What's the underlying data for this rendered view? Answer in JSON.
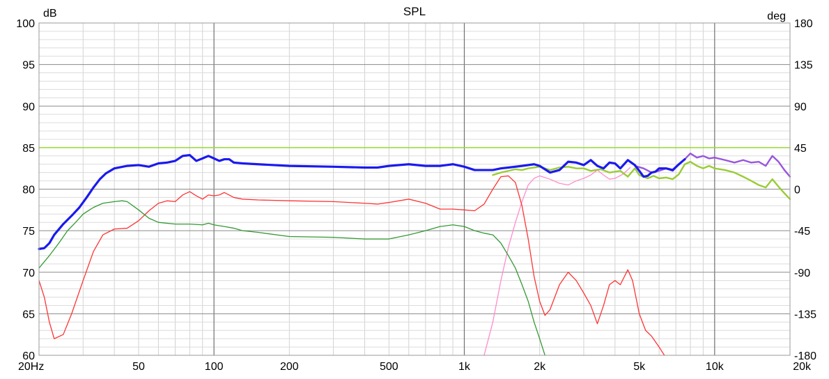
{
  "chart_data": {
    "type": "line",
    "title": "SPL",
    "ylabel_left": "dB",
    "ylabel_right": "deg",
    "x_scale": "log",
    "xlim": [
      20,
      20000
    ],
    "ylim": [
      60,
      100
    ],
    "ylim_right": [
      -180,
      180
    ],
    "x_tick_labels": [
      {
        "value": 20,
        "label": "20Hz"
      },
      {
        "value": 50,
        "label": "50"
      },
      {
        "value": 100,
        "label": "100"
      },
      {
        "value": 200,
        "label": "200"
      },
      {
        "value": 500,
        "label": "500"
      },
      {
        "value": 1000,
        "label": "1k"
      },
      {
        "value": 2000,
        "label": "2k"
      },
      {
        "value": 5000,
        "label": "5k"
      },
      {
        "value": 10000,
        "label": "10k"
      },
      {
        "value": 20000,
        "label": "20k"
      }
    ],
    "y_tick_labels": [
      "60",
      "65",
      "70",
      "75",
      "80",
      "85",
      "90",
      "95",
      "100"
    ],
    "y_right_tick_labels": [
      "-180",
      "-135",
      "-90",
      "-45",
      "0",
      "45",
      "90",
      "135",
      "180"
    ],
    "grid": true,
    "series": [
      {
        "color": "#99dd33",
        "width": 1.5,
        "points": [
          [
            20,
            85
          ],
          [
            20000,
            85
          ]
        ]
      },
      {
        "color": "#ff8ccc",
        "width": 1.3,
        "points": [
          [
            1200,
            60
          ],
          [
            1300,
            64
          ],
          [
            1400,
            69
          ],
          [
            1500,
            73
          ],
          [
            1600,
            76
          ],
          [
            1700,
            78.5
          ],
          [
            1800,
            80.5
          ],
          [
            1900,
            81.3
          ],
          [
            2000,
            81.6
          ],
          [
            2200,
            81.2
          ],
          [
            2400,
            80.7
          ],
          [
            2600,
            80.5
          ],
          [
            2800,
            81
          ],
          [
            3000,
            81.3
          ],
          [
            3200,
            81.7
          ],
          [
            3400,
            82.3
          ],
          [
            3600,
            81.7
          ],
          [
            3800,
            81.2
          ],
          [
            4000,
            81.3
          ],
          [
            4300,
            81.8
          ],
          [
            4600,
            82.6
          ]
        ]
      },
      {
        "color": "#ff3333",
        "width": 1.3,
        "points": [
          [
            20,
            69
          ],
          [
            21,
            67
          ],
          [
            22,
            64
          ],
          [
            23,
            62
          ],
          [
            25,
            62.5
          ],
          [
            27,
            65
          ],
          [
            30,
            69
          ],
          [
            33,
            72.5
          ],
          [
            36,
            74.5
          ],
          [
            40,
            75.2
          ],
          [
            45,
            75.3
          ],
          [
            50,
            76.2
          ],
          [
            55,
            77.4
          ],
          [
            60,
            78.3
          ],
          [
            65,
            78.6
          ],
          [
            70,
            78.5
          ],
          [
            75,
            79.3
          ],
          [
            80,
            79.7
          ],
          [
            85,
            79.2
          ],
          [
            90,
            78.8
          ],
          [
            95,
            79.3
          ],
          [
            100,
            79.2
          ],
          [
            105,
            79.3
          ],
          [
            110,
            79.6
          ],
          [
            120,
            79
          ],
          [
            130,
            78.8
          ],
          [
            150,
            78.7
          ],
          [
            200,
            78.6
          ],
          [
            300,
            78.5
          ],
          [
            400,
            78.3
          ],
          [
            450,
            78.2
          ],
          [
            500,
            78.4
          ],
          [
            600,
            78.8
          ],
          [
            700,
            78.3
          ],
          [
            800,
            77.6
          ],
          [
            900,
            77.6
          ],
          [
            1000,
            77.5
          ],
          [
            1100,
            77.4
          ],
          [
            1200,
            78.2
          ],
          [
            1300,
            80
          ],
          [
            1400,
            81.5
          ],
          [
            1500,
            81.6
          ],
          [
            1600,
            80.8
          ],
          [
            1700,
            78
          ],
          [
            1800,
            74
          ],
          [
            1900,
            69.5
          ],
          [
            2000,
            66.5
          ],
          [
            2100,
            64.8
          ],
          [
            2200,
            65.5
          ],
          [
            2400,
            68.5
          ],
          [
            2600,
            70
          ],
          [
            2800,
            69
          ],
          [
            3000,
            67.5
          ],
          [
            3200,
            66
          ],
          [
            3400,
            63.8
          ],
          [
            3600,
            66
          ],
          [
            3800,
            68.5
          ],
          [
            4000,
            69
          ],
          [
            4200,
            68.5
          ],
          [
            4500,
            70.3
          ],
          [
            4700,
            69
          ],
          [
            5000,
            65
          ],
          [
            5300,
            63
          ],
          [
            5600,
            62.3
          ],
          [
            6000,
            61
          ],
          [
            6300,
            60
          ]
        ]
      },
      {
        "color": "#339933",
        "width": 1.3,
        "points": [
          [
            20,
            70.5
          ],
          [
            22,
            72
          ],
          [
            24,
            73.5
          ],
          [
            26,
            75
          ],
          [
            28,
            76
          ],
          [
            30,
            77
          ],
          [
            33,
            77.8
          ],
          [
            36,
            78.3
          ],
          [
            40,
            78.5
          ],
          [
            43,
            78.6
          ],
          [
            45,
            78.5
          ],
          [
            50,
            77.5
          ],
          [
            55,
            76.5
          ],
          [
            60,
            76
          ],
          [
            70,
            75.8
          ],
          [
            80,
            75.8
          ],
          [
            90,
            75.7
          ],
          [
            95,
            75.9
          ],
          [
            100,
            75.7
          ],
          [
            110,
            75.5
          ],
          [
            120,
            75.3
          ],
          [
            130,
            75
          ],
          [
            150,
            74.8
          ],
          [
            200,
            74.3
          ],
          [
            300,
            74.2
          ],
          [
            400,
            74
          ],
          [
            500,
            74
          ],
          [
            600,
            74.5
          ],
          [
            700,
            75
          ],
          [
            800,
            75.5
          ],
          [
            900,
            75.7
          ],
          [
            1000,
            75.5
          ],
          [
            1100,
            75
          ],
          [
            1200,
            74.7
          ],
          [
            1300,
            74.5
          ],
          [
            1400,
            73.5
          ],
          [
            1500,
            72
          ],
          [
            1600,
            70.5
          ],
          [
            1700,
            68.5
          ],
          [
            1800,
            66.5
          ],
          [
            1900,
            64
          ],
          [
            2000,
            62
          ],
          [
            2100,
            60
          ]
        ]
      },
      {
        "color": "#99cc33",
        "width": 2.4,
        "points": [
          [
            1300,
            81.7
          ],
          [
            1400,
            82
          ],
          [
            1500,
            82.2
          ],
          [
            1600,
            82.4
          ],
          [
            1700,
            82.3
          ],
          [
            1800,
            82.5
          ],
          [
            2000,
            82.7
          ],
          [
            2200,
            82.3
          ],
          [
            2400,
            82.6
          ],
          [
            2600,
            82.7
          ],
          [
            2800,
            82.5
          ],
          [
            3000,
            82.5
          ],
          [
            3200,
            82.2
          ],
          [
            3500,
            82.4
          ],
          [
            3800,
            82
          ],
          [
            4200,
            82.2
          ],
          [
            4500,
            81.5
          ],
          [
            4800,
            82.5
          ],
          [
            5000,
            81.7
          ],
          [
            5400,
            81.3
          ],
          [
            5700,
            81.6
          ],
          [
            6000,
            81.3
          ],
          [
            6400,
            81.4
          ],
          [
            6800,
            81.2
          ],
          [
            7200,
            81.8
          ],
          [
            7600,
            83
          ],
          [
            8000,
            83.3
          ],
          [
            8500,
            82.8
          ],
          [
            9000,
            82.5
          ],
          [
            9500,
            82.8
          ],
          [
            10000,
            82.5
          ],
          [
            11000,
            82.3
          ],
          [
            12000,
            82
          ],
          [
            13000,
            81.5
          ],
          [
            14000,
            81
          ],
          [
            15000,
            80.5
          ],
          [
            16000,
            80.2
          ],
          [
            17000,
            81.2
          ],
          [
            18000,
            80.3
          ],
          [
            19000,
            79.5
          ],
          [
            20000,
            78.8
          ]
        ]
      },
      {
        "color": "#9955dd",
        "width": 2.4,
        "points": [
          [
            4800,
            82.8
          ],
          [
            5200,
            82.5
          ],
          [
            5600,
            82
          ],
          [
            6000,
            82.2
          ],
          [
            6400,
            82.5
          ],
          [
            6800,
            82.2
          ],
          [
            7200,
            83
          ],
          [
            7600,
            83.6
          ],
          [
            8000,
            84.3
          ],
          [
            8500,
            83.8
          ],
          [
            9000,
            84
          ],
          [
            9500,
            83.7
          ],
          [
            10000,
            83.8
          ],
          [
            11000,
            83.5
          ],
          [
            12000,
            83.2
          ],
          [
            13000,
            83.5
          ],
          [
            14000,
            83.2
          ],
          [
            15000,
            83.3
          ],
          [
            16000,
            82.8
          ],
          [
            17000,
            84
          ],
          [
            18000,
            83.3
          ],
          [
            19000,
            82.3
          ],
          [
            20000,
            81.5
          ]
        ]
      },
      {
        "color": "#1a1aee",
        "width": 3.2,
        "points": [
          [
            20,
            72.8
          ],
          [
            21,
            72.9
          ],
          [
            22,
            73.5
          ],
          [
            23,
            74.5
          ],
          [
            25,
            75.8
          ],
          [
            27,
            76.8
          ],
          [
            29,
            77.8
          ],
          [
            31,
            79
          ],
          [
            33,
            80.2
          ],
          [
            35,
            81.2
          ],
          [
            37,
            81.9
          ],
          [
            40,
            82.5
          ],
          [
            45,
            82.8
          ],
          [
            50,
            82.9
          ],
          [
            55,
            82.7
          ],
          [
            60,
            83.1
          ],
          [
            65,
            83.2
          ],
          [
            70,
            83.4
          ],
          [
            75,
            84
          ],
          [
            80,
            84.1
          ],
          [
            85,
            83.4
          ],
          [
            90,
            83.7
          ],
          [
            95,
            84
          ],
          [
            100,
            83.7
          ],
          [
            105,
            83.4
          ],
          [
            110,
            83.6
          ],
          [
            115,
            83.6
          ],
          [
            120,
            83.2
          ],
          [
            130,
            83.1
          ],
          [
            150,
            83
          ],
          [
            200,
            82.8
          ],
          [
            300,
            82.7
          ],
          [
            400,
            82.6
          ],
          [
            450,
            82.6
          ],
          [
            500,
            82.8
          ],
          [
            600,
            83
          ],
          [
            700,
            82.8
          ],
          [
            800,
            82.8
          ],
          [
            900,
            83
          ],
          [
            1000,
            82.7
          ],
          [
            1100,
            82.3
          ],
          [
            1200,
            82.3
          ],
          [
            1300,
            82.3
          ],
          [
            1400,
            82.5
          ],
          [
            1500,
            82.6
          ],
          [
            1700,
            82.8
          ],
          [
            1900,
            83
          ],
          [
            2000,
            82.8
          ],
          [
            2200,
            82
          ],
          [
            2400,
            82.3
          ],
          [
            2600,
            83.3
          ],
          [
            2800,
            83.2
          ],
          [
            3000,
            82.9
          ],
          [
            3200,
            83.5
          ],
          [
            3400,
            82.8
          ],
          [
            3600,
            82.5
          ],
          [
            3800,
            83.2
          ],
          [
            4000,
            83.1
          ],
          [
            4200,
            82.5
          ],
          [
            4500,
            83.5
          ],
          [
            4800,
            82.9
          ],
          [
            5000,
            82.2
          ],
          [
            5200,
            81.5
          ],
          [
            5400,
            81.6
          ],
          [
            5600,
            82
          ],
          [
            5800,
            82.1
          ],
          [
            6000,
            82.5
          ],
          [
            6400,
            82.5
          ],
          [
            6800,
            82.3
          ],
          [
            7200,
            83
          ],
          [
            7600,
            83.6
          ]
        ]
      }
    ]
  }
}
